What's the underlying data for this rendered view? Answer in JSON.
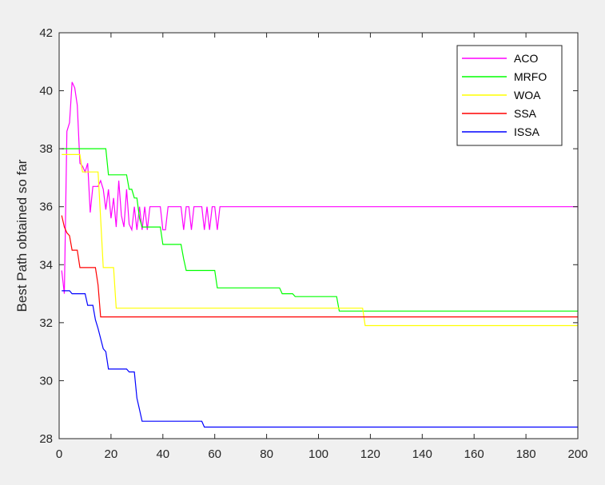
{
  "chart_data": {
    "type": "line",
    "title": "",
    "xlabel": "",
    "ylabel": "Best Path obtained so far",
    "xlim": [
      0,
      200
    ],
    "ylim": [
      28,
      42
    ],
    "x_ticks": [
      0,
      20,
      40,
      60,
      80,
      100,
      120,
      140,
      160,
      180,
      200
    ],
    "y_ticks": [
      28,
      30,
      32,
      34,
      36,
      38,
      40,
      42
    ],
    "grid": false,
    "legend_position": "top-right",
    "series": [
      {
        "name": "ACO",
        "color": "#ff00ff",
        "points": [
          [
            1,
            33.8
          ],
          [
            2,
            33.0
          ],
          [
            3,
            38.6
          ],
          [
            4,
            38.9
          ],
          [
            5,
            40.3
          ],
          [
            6,
            40.1
          ],
          [
            7,
            39.5
          ],
          [
            8,
            37.5
          ],
          [
            9,
            37.4
          ],
          [
            10,
            37.2
          ],
          [
            11,
            37.5
          ],
          [
            12,
            35.8
          ],
          [
            13,
            36.7
          ],
          [
            14,
            36.7
          ],
          [
            15,
            36.7
          ],
          [
            16,
            36.9
          ],
          [
            17,
            36.6
          ],
          [
            18,
            35.9
          ],
          [
            19,
            36.6
          ],
          [
            20,
            35.6
          ],
          [
            21,
            36.3
          ],
          [
            22,
            35.3
          ],
          [
            23,
            36.9
          ],
          [
            24,
            35.7
          ],
          [
            25,
            35.3
          ],
          [
            26,
            36.6
          ],
          [
            27,
            35.4
          ],
          [
            28,
            35.2
          ],
          [
            29,
            36.0
          ],
          [
            30,
            35.2
          ],
          [
            31,
            36.0
          ],
          [
            32,
            35.2
          ],
          [
            33,
            36.0
          ],
          [
            34,
            35.2
          ],
          [
            35,
            36.0
          ],
          [
            36,
            36.0
          ],
          [
            37,
            36.0
          ],
          [
            38,
            36.0
          ],
          [
            39,
            36.0
          ],
          [
            40,
            35.2
          ],
          [
            41,
            35.2
          ],
          [
            42,
            36.0
          ],
          [
            43,
            36.0
          ],
          [
            44,
            36.0
          ],
          [
            45,
            36.0
          ],
          [
            46,
            36.0
          ],
          [
            47,
            36.0
          ],
          [
            48,
            35.2
          ],
          [
            49,
            36.0
          ],
          [
            50,
            36.0
          ],
          [
            51,
            35.2
          ],
          [
            52,
            36.0
          ],
          [
            53,
            36.0
          ],
          [
            54,
            36.0
          ],
          [
            55,
            36.0
          ],
          [
            56,
            35.2
          ],
          [
            57,
            36.0
          ],
          [
            58,
            35.2
          ],
          [
            59,
            36.0
          ],
          [
            60,
            36.0
          ],
          [
            61,
            35.2
          ],
          [
            62,
            36.0
          ],
          [
            63,
            36.0
          ],
          [
            200,
            36.0
          ]
        ]
      },
      {
        "name": "MRFO",
        "color": "#00ff00",
        "points": [
          [
            1,
            38.0
          ],
          [
            18,
            38.0
          ],
          [
            19,
            37.1
          ],
          [
            26,
            37.1
          ],
          [
            27,
            36.6
          ],
          [
            28,
            36.6
          ],
          [
            29,
            36.3
          ],
          [
            30,
            36.3
          ],
          [
            31,
            35.6
          ],
          [
            32,
            35.3
          ],
          [
            34,
            35.3
          ],
          [
            35,
            35.3
          ],
          [
            39,
            35.3
          ],
          [
            40,
            34.7
          ],
          [
            47,
            34.7
          ],
          [
            48,
            34.2
          ],
          [
            49,
            33.8
          ],
          [
            60,
            33.8
          ],
          [
            61,
            33.2
          ],
          [
            85,
            33.2
          ],
          [
            86,
            33.0
          ],
          [
            90,
            33.0
          ],
          [
            91,
            32.9
          ],
          [
            107,
            32.9
          ],
          [
            108,
            32.4
          ],
          [
            200,
            32.4
          ]
        ]
      },
      {
        "name": "WOA",
        "color": "#ffff00",
        "points": [
          [
            1,
            37.8
          ],
          [
            8,
            37.8
          ],
          [
            9,
            37.2
          ],
          [
            15,
            37.2
          ],
          [
            16,
            35.6
          ],
          [
            17,
            33.9
          ],
          [
            21,
            33.9
          ],
          [
            22,
            32.5
          ],
          [
            117,
            32.5
          ],
          [
            118,
            31.9
          ],
          [
            200,
            31.9
          ]
        ]
      },
      {
        "name": "SSA",
        "color": "#ff0000",
        "points": [
          [
            1,
            35.7
          ],
          [
            2,
            35.3
          ],
          [
            3,
            35.1
          ],
          [
            4,
            35.0
          ],
          [
            5,
            34.5
          ],
          [
            7,
            34.5
          ],
          [
            8,
            33.9
          ],
          [
            14,
            33.9
          ],
          [
            15,
            33.3
          ],
          [
            16,
            32.2
          ],
          [
            200,
            32.2
          ]
        ]
      },
      {
        "name": "ISSA",
        "color": "#0000ff",
        "points": [
          [
            1,
            33.1
          ],
          [
            4,
            33.1
          ],
          [
            5,
            33.0
          ],
          [
            10,
            33.0
          ],
          [
            11,
            32.6
          ],
          [
            13,
            32.6
          ],
          [
            14,
            32.1
          ],
          [
            15,
            31.8
          ],
          [
            17,
            31.1
          ],
          [
            18,
            31.0
          ],
          [
            19,
            30.4
          ],
          [
            26,
            30.4
          ],
          [
            27,
            30.3
          ],
          [
            29,
            30.3
          ],
          [
            30,
            29.4
          ],
          [
            31,
            29.0
          ],
          [
            32,
            28.6
          ],
          [
            55,
            28.6
          ],
          [
            56,
            28.4
          ],
          [
            200,
            28.4
          ]
        ]
      }
    ]
  }
}
